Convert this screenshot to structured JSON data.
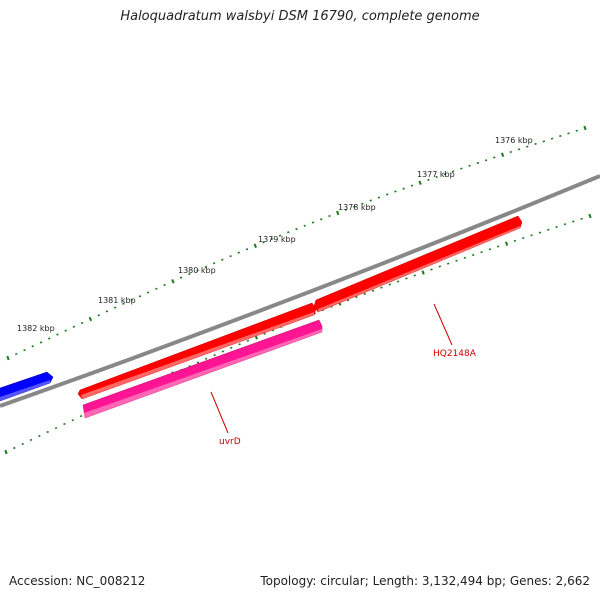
{
  "title": "Haloquadratum walsbyi DSM 16790, complete genome",
  "footer": {
    "accession_label": "Accession:",
    "accession": "NC_008212",
    "topology_label": "Topology:",
    "topology": "circular",
    "length_label": "Length:",
    "length": "3,132,494 bp",
    "genes_label": "Genes:",
    "genes": "2,662"
  },
  "map": {
    "scale_labels": [
      "1376 kbp",
      "1377 kbp",
      "1378 kbp",
      "1379 kbp",
      "1380 kbp",
      "1381 kbp",
      "1382 kbp"
    ],
    "genes": [
      {
        "name": "HQ2148A",
        "color": "#ff0000",
        "strand": "forward",
        "track": "outer"
      },
      {
        "name": "uvrD",
        "color": "#ff0000",
        "strand": "forward",
        "track": "outer"
      },
      {
        "name": "uvrD",
        "color": "#ff1493",
        "strand": "forward",
        "track": "inner"
      },
      {
        "name": "",
        "color": "#0000ff",
        "strand": "forward",
        "track": "outer"
      }
    ],
    "colors": {
      "backbone": "#888888",
      "tick": "#1a7a1a",
      "gene_cds": "#ff0000",
      "gene_rna": "#ff1493",
      "gene_other": "#0000ff",
      "label": "#cc0000"
    }
  }
}
